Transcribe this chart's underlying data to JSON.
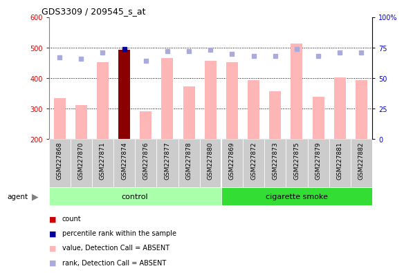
{
  "title": "GDS3309 / 209545_s_at",
  "samples": [
    "GSM227868",
    "GSM227870",
    "GSM227871",
    "GSM227874",
    "GSM227876",
    "GSM227877",
    "GSM227878",
    "GSM227880",
    "GSM227869",
    "GSM227872",
    "GSM227873",
    "GSM227875",
    "GSM227879",
    "GSM227881",
    "GSM227882"
  ],
  "bar_values": [
    335,
    312,
    453,
    493,
    292,
    467,
    372,
    458,
    452,
    393,
    358,
    513,
    340,
    402,
    393
  ],
  "bar_highlight": [
    3
  ],
  "rank_values": [
    67,
    66,
    71,
    74,
    64,
    72,
    72,
    73,
    70,
    68,
    68,
    74,
    68,
    71,
    71
  ],
  "n_control": 8,
  "n_smoke": 7,
  "ylim_left": [
    200,
    600
  ],
  "ylim_right": [
    0,
    100
  ],
  "bar_color_normal": "#FFB6B6",
  "bar_color_highlight": "#8B0000",
  "rank_color": "#AAAADD",
  "dot_color_highlight": "#000099",
  "left_tick_color": "#CC0000",
  "right_tick_color": "#0000CC",
  "control_bg": "#AAFFAA",
  "smoke_bg": "#33DD33",
  "yticks_left": [
    200,
    300,
    400,
    500,
    600
  ],
  "yticks_right": [
    0,
    25,
    50,
    75,
    100
  ],
  "legend_items": [
    {
      "color": "#CC0000",
      "label": "count"
    },
    {
      "color": "#000099",
      "label": "percentile rank within the sample"
    },
    {
      "color": "#FFB6B6",
      "label": "value, Detection Call = ABSENT"
    },
    {
      "color": "#AAAADD",
      "label": "rank, Detection Call = ABSENT"
    }
  ]
}
